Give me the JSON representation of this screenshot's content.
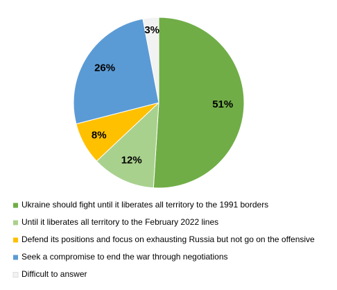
{
  "chart_data": {
    "type": "pie",
    "categories": [
      "Ukraine should fight until it liberates all territory to the 1991 borders",
      "Until it liberates all territory to the February 2022 lines",
      "Defend its positions and focus on exhausting Russia but not go on the offensive",
      "Seek a compromise to end the war through negotiations",
      "Difficult to answer"
    ],
    "values": [
      51,
      12,
      8,
      26,
      3
    ],
    "value_labels": [
      "51%",
      "12%",
      "8%",
      "26%",
      "3%"
    ],
    "colors": [
      "#70ad47",
      "#a9d18e",
      "#ffc000",
      "#5b9bd5",
      "#f2f2f2"
    ]
  }
}
